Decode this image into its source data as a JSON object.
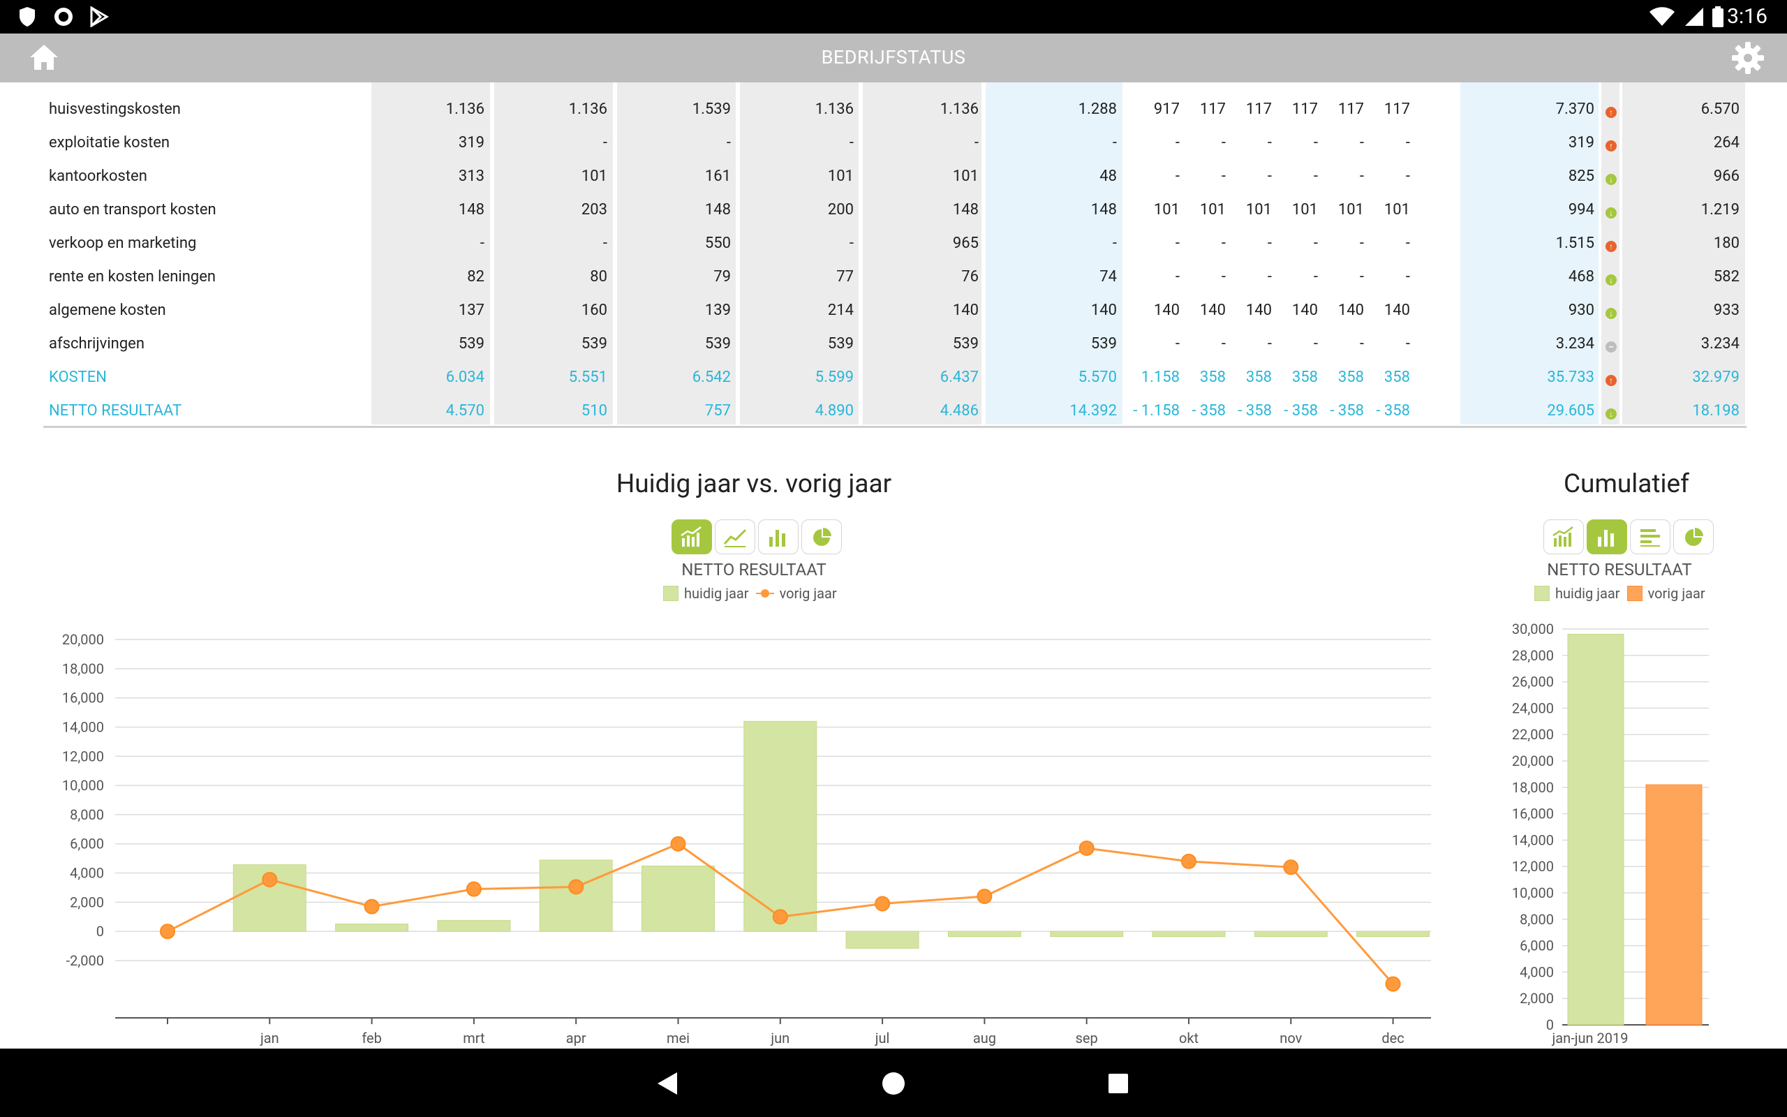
{
  "statusbar": {
    "time": "3:16"
  },
  "appbar": {
    "title": "BEDRIJFSTATUS"
  },
  "table": {
    "rows": [
      {
        "label": "huisvestingskosten",
        "accent": false,
        "values": [
          "1.136",
          "1.136",
          "1.539",
          "1.136",
          "1.136",
          "1.288",
          "917",
          "117",
          "117",
          "117",
          "117",
          "117",
          "7.370",
          "6.570"
        ],
        "trend": "up"
      },
      {
        "label": "exploitatie kosten",
        "accent": false,
        "values": [
          "319",
          "-",
          "-",
          "-",
          "-",
          "-",
          "-",
          "-",
          "-",
          "-",
          "-",
          "-",
          "319",
          "264"
        ],
        "trend": "up"
      },
      {
        "label": "kantoorkosten",
        "accent": false,
        "values": [
          "313",
          "101",
          "161",
          "101",
          "101",
          "48",
          "-",
          "-",
          "-",
          "-",
          "-",
          "-",
          "825",
          "966"
        ],
        "trend": "down"
      },
      {
        "label": "auto en transport kosten",
        "accent": false,
        "values": [
          "148",
          "203",
          "148",
          "200",
          "148",
          "148",
          "101",
          "101",
          "101",
          "101",
          "101",
          "101",
          "994",
          "1.219"
        ],
        "trend": "down"
      },
      {
        "label": "verkoop en marketing",
        "accent": false,
        "values": [
          "-",
          "-",
          "550",
          "-",
          "965",
          "-",
          "-",
          "-",
          "-",
          "-",
          "-",
          "-",
          "1.515",
          "180"
        ],
        "trend": "up"
      },
      {
        "label": "rente en kosten leningen",
        "accent": false,
        "values": [
          "82",
          "80",
          "79",
          "77",
          "76",
          "74",
          "-",
          "-",
          "-",
          "-",
          "-",
          "-",
          "468",
          "582"
        ],
        "trend": "down"
      },
      {
        "label": "algemene kosten",
        "accent": false,
        "values": [
          "137",
          "160",
          "139",
          "214",
          "140",
          "140",
          "140",
          "140",
          "140",
          "140",
          "140",
          "140",
          "930",
          "933"
        ],
        "trend": "down"
      },
      {
        "label": "afschrijvingen",
        "accent": false,
        "values": [
          "539",
          "539",
          "539",
          "539",
          "539",
          "539",
          "-",
          "-",
          "-",
          "-",
          "-",
          "-",
          "3.234",
          "3.234"
        ],
        "trend": "flat"
      },
      {
        "label": "KOSTEN",
        "accent": true,
        "values": [
          "6.034",
          "5.551",
          "6.542",
          "5.599",
          "6.437",
          "5.570",
          "1.158",
          "358",
          "358",
          "358",
          "358",
          "358",
          "35.733",
          "32.979"
        ],
        "trend": "up"
      },
      {
        "label": "NETTO RESULTAAT",
        "accent": true,
        "values": [
          "4.570",
          "510",
          "757",
          "4.890",
          "4.486",
          "14.392",
          "- 1.158",
          "- 358",
          "- 358",
          "- 358",
          "- 358",
          "- 358",
          "29.605",
          "18.198"
        ],
        "trend": "down"
      }
    ]
  },
  "main_chart": {
    "title": "Huidig jaar vs. vorig jaar",
    "subtitle": "NETTO RESULTAAT",
    "legend": {
      "current": "huidig jaar",
      "previous": "vorig jaar"
    },
    "buttons": [
      {
        "icon": "bar-line-combo-icon",
        "active": true
      },
      {
        "icon": "line-chart-icon",
        "active": false
      },
      {
        "icon": "bar-chart-icon",
        "active": false
      },
      {
        "icon": "pie-chart-icon",
        "active": false
      }
    ]
  },
  "side_chart": {
    "title": "Cumulatief",
    "subtitle": "NETTO RESULTAAT",
    "legend": {
      "current": "huidig jaar",
      "previous": "vorig jaar"
    },
    "buttons": [
      {
        "icon": "bar-line-combo-icon",
        "active": false
      },
      {
        "icon": "bar-chart-icon",
        "active": true
      },
      {
        "icon": "horizontal-bar-icon",
        "active": false
      },
      {
        "icon": "pie-chart-icon",
        "active": false
      }
    ]
  },
  "colors": {
    "accent": "#29b6d9",
    "bar_green": "#d4e4a3",
    "line_orange": "#ff9a3c",
    "button_active": "#a5c73f",
    "trend_up": "#e8632b",
    "trend_down": "#a5c73f"
  },
  "chart_data": [
    {
      "type": "bar",
      "title": "Huidig jaar vs. vorig jaar",
      "subtitle": "NETTO RESULTAAT",
      "categories": [
        "",
        "jan",
        "feb",
        "mrt",
        "apr",
        "mei",
        "jun",
        "jul",
        "aug",
        "sep",
        "okt",
        "nov",
        "dec"
      ],
      "ylim": [
        -2000,
        20000
      ],
      "yticks": [
        -2000,
        0,
        2000,
        4000,
        6000,
        8000,
        10000,
        12000,
        14000,
        16000,
        18000,
        20000
      ],
      "ytick_labels": [
        "-2,000",
        "0",
        "2,000",
        "4,000",
        "6,000",
        "8,000",
        "10,000",
        "12,000",
        "14,000",
        "16,000",
        "18,000",
        "20,000"
      ],
      "series": [
        {
          "name": "huidig jaar",
          "kind": "bar",
          "color": "#d4e4a3",
          "values": [
            null,
            4570,
            510,
            757,
            4890,
            4486,
            14392,
            -1158,
            -358,
            -358,
            -358,
            -358,
            -358
          ]
        },
        {
          "name": "vorig jaar",
          "kind": "line",
          "color": "#ff9a3c",
          "values": [
            0,
            3550,
            1700,
            2900,
            3050,
            6000,
            1000,
            1900,
            2400,
            5700,
            4800,
            4400,
            -3600
          ]
        }
      ],
      "grid": true,
      "legend_position": "top-center"
    },
    {
      "type": "bar",
      "title": "Cumulatief",
      "subtitle": "NETTO RESULTAAT",
      "categories": [
        "jan-jun 2019"
      ],
      "ylim": [
        0,
        30000
      ],
      "yticks": [
        0,
        2000,
        4000,
        6000,
        8000,
        10000,
        12000,
        14000,
        16000,
        18000,
        20000,
        22000,
        24000,
        26000,
        28000,
        30000
      ],
      "ytick_labels": [
        "0",
        "2,000",
        "4,000",
        "6,000",
        "8,000",
        "10,000",
        "12,000",
        "14,000",
        "16,000",
        "18,000",
        "20,000",
        "22,000",
        "24,000",
        "26,000",
        "28,000",
        "30,000"
      ],
      "series": [
        {
          "name": "huidig jaar",
          "color": "#d4e4a3",
          "values": [
            29605
          ]
        },
        {
          "name": "vorig jaar",
          "color": "#ffa55a",
          "values": [
            18198
          ]
        }
      ],
      "grid": true,
      "legend_position": "top-center"
    }
  ]
}
